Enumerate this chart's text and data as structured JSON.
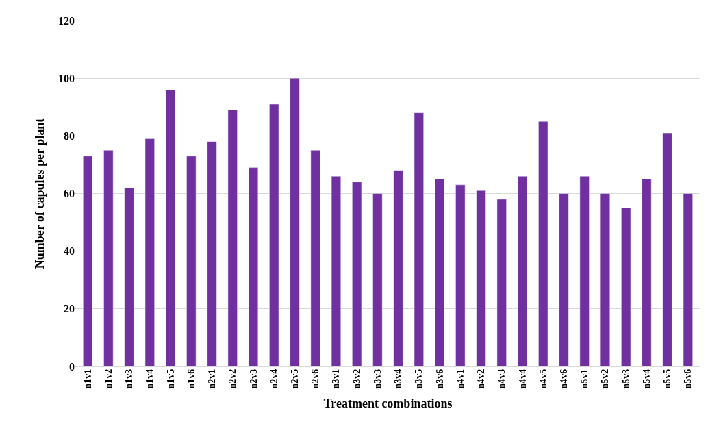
{
  "chart_data": {
    "type": "bar",
    "xlabel": "Treatment combinations",
    "ylabel": "Number of capules per plant",
    "categories": [
      "n1v1",
      "n1v2",
      "n1v3",
      "n1v4",
      "n1v5",
      "n1v6",
      "n2v1",
      "n2v2",
      "n2v3",
      "n2v4",
      "n2v5",
      "n2v6",
      "n3v1",
      "n3v2",
      "n3v3",
      "n3v4",
      "n3v5",
      "n3v6",
      "n4v1",
      "n4v2",
      "n4v3",
      "n4v4",
      "n4v5",
      "n4v6",
      "n5v1",
      "n5v2",
      "n5v3",
      "n5v4",
      "n5v5",
      "n5v6"
    ],
    "values": [
      73,
      75,
      62,
      79,
      96,
      73,
      78,
      89,
      69,
      91,
      100,
      75,
      66,
      64,
      60,
      68,
      88,
      65,
      63,
      61,
      58,
      66,
      85,
      60,
      66,
      60,
      55,
      65,
      81,
      60
    ],
    "color": "#7030a0",
    "ylim": [
      0,
      120
    ],
    "yticks": [
      0,
      20,
      40,
      60,
      80,
      100,
      120
    ],
    "grid": "y"
  }
}
